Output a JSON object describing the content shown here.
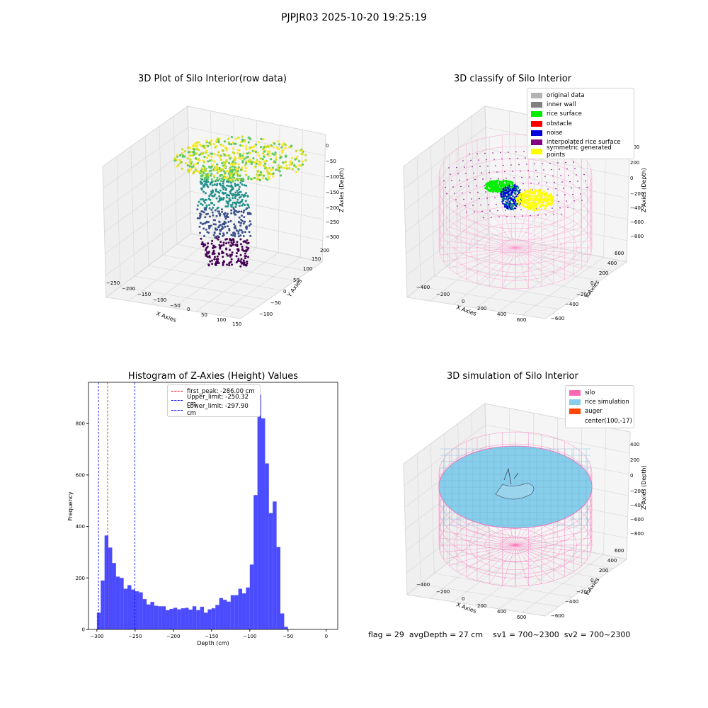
{
  "suptitle": "PJPJR03 2025-10-20 19:25:19",
  "status_line": {
    "flag": "flag = 29",
    "avg_depth": "avgDepth = 27 cm",
    "sv1": "sv1 = 700~2300",
    "sv2": "sv2 = 700~2300"
  },
  "panels": {
    "raw3d": {
      "title": "3D Plot of Silo Interior(row data)",
      "xlabel": "X Axies",
      "ylabel": "Y Axies",
      "zlabel": "Z Axies (Depth)",
      "xticks": [
        "−250",
        "−200",
        "−150",
        "−100",
        "−50",
        "0",
        "50",
        "100",
        "150"
      ],
      "yticks": [
        "−100",
        "−50",
        "0",
        "50",
        "100",
        "150",
        "200"
      ],
      "zticks": [
        "0",
        "−50",
        "−100",
        "−150",
        "−200",
        "−250",
        "−300"
      ]
    },
    "classify3d": {
      "title": "3D classify of Silo Interior",
      "xlabel": "X Axies",
      "ylabel": "Y Axies",
      "zlabel": "Z Axies (Depth)",
      "xticks": [
        "−400",
        "−200",
        "0",
        "200",
        "400",
        "600"
      ],
      "yticks": [
        "−600",
        "−400",
        "−200",
        "0",
        "200",
        "400",
        "600"
      ],
      "zticks": [
        "400",
        "200",
        "0",
        "−200",
        "−400",
        "−600",
        "−800"
      ],
      "legend": [
        {
          "label": "original data",
          "color": "#b3b3b3"
        },
        {
          "label": "inner wall",
          "color": "#808080"
        },
        {
          "label": "rice surface",
          "color": "#00ee00"
        },
        {
          "label": "obstacle",
          "color": "#ff0000"
        },
        {
          "label": "noise",
          "color": "#0000dd"
        },
        {
          "label": "interpolated rice surface",
          "color": "#800080"
        },
        {
          "label": "symmetric generated points",
          "color": "#ffff00"
        }
      ]
    },
    "simulation3d": {
      "title": "3D simulation of Silo Interior",
      "xlabel": "X Axies",
      "ylabel": "Y Axies",
      "zlabel": "Z Axies (Depth)",
      "xticks": [
        "−400",
        "−200",
        "0",
        "200",
        "400",
        "600"
      ],
      "yticks": [
        "−600",
        "−400",
        "−200",
        "0",
        "200",
        "400",
        "600"
      ],
      "zticks": [
        "400",
        "200",
        "0",
        "−200",
        "−400",
        "−600",
        "−800"
      ],
      "legend": [
        {
          "label": "silo",
          "color": "#ff69b4"
        },
        {
          "label": "rice simulation",
          "color": "#87ceeb"
        },
        {
          "label": "auger",
          "color": "#ff4500"
        },
        {
          "label": "center(100,-17)",
          "color": ""
        }
      ]
    }
  },
  "chart_data": {
    "type": "bar",
    "title": "Histogram of Z-Axies (Height) Values",
    "xlabel": "Depth (cm)",
    "ylabel": "Frequency",
    "xlim": [
      -311,
      15
    ],
    "ylim": [
      0,
      960
    ],
    "xticks": [
      -300,
      -250,
      -200,
      -150,
      -100,
      -50,
      0
    ],
    "yticks": [
      0,
      200,
      400,
      600,
      800
    ],
    "bin_start": -300,
    "bin_width": 5,
    "values": [
      65,
      190,
      365,
      318,
      258,
      205,
      200,
      158,
      172,
      155,
      148,
      144,
      118,
      97,
      107,
      92,
      90,
      90,
      75,
      80,
      84,
      78,
      82,
      84,
      77,
      90,
      75,
      88,
      65,
      78,
      82,
      95,
      122,
      115,
      108,
      133,
      133,
      158,
      140,
      163,
      252,
      522,
      912,
      820,
      645,
      452,
      497,
      320,
      62,
      10
    ],
    "bar_color": "#0000ff",
    "bar_alpha": 0.7,
    "reference_lines": [
      {
        "label": "first_peak: -286.00 cm",
        "x": -286.0,
        "color": "#ff0000"
      },
      {
        "label": "Upper_limit: -250.32 cm",
        "x": -250.32,
        "color": "#0000ff"
      },
      {
        "label": "Lower_limit: -297.90 cm",
        "x": -297.9,
        "color": "#0000ff"
      }
    ],
    "legend_position": "upper-center"
  }
}
